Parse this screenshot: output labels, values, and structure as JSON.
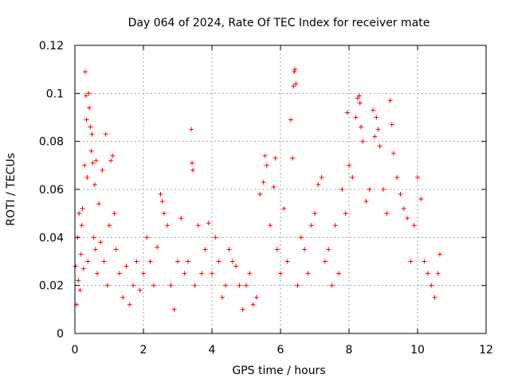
{
  "chart_data": {
    "type": "scatter",
    "title": "Day 064 of 2024, Rate Of TEC Index for receiver mate",
    "xlabel": "GPS time / hours",
    "ylabel": "ROTI / TECUs",
    "xlim": [
      0,
      12
    ],
    "ylim": [
      0,
      0.12
    ],
    "x_ticks": [
      0,
      2,
      4,
      6,
      8,
      10,
      12
    ],
    "x_tick_labels": [
      "0",
      "2",
      "4",
      "6",
      "8",
      "10",
      "12"
    ],
    "y_ticks": [
      0,
      0.02,
      0.04,
      0.06,
      0.08,
      0.1,
      0.12
    ],
    "y_tick_labels": [
      "0",
      "0.02",
      "0.04",
      "0.06",
      "0.08",
      "0.1",
      "0.12"
    ],
    "grid": true,
    "marker": "+",
    "marker_color": "#ff0000",
    "series": [
      {
        "name": "ROTI",
        "points": [
          [
            0.02,
            0.028
          ],
          [
            0.05,
            0.012
          ],
          [
            0.08,
            0.04
          ],
          [
            0.1,
            0.022
          ],
          [
            0.12,
            0.05
          ],
          [
            0.15,
            0.018
          ],
          [
            0.18,
            0.033
          ],
          [
            0.2,
            0.045
          ],
          [
            0.22,
            0.052
          ],
          [
            0.25,
            0.027
          ],
          [
            0.28,
            0.07
          ],
          [
            0.3,
            0.109
          ],
          [
            0.32,
            0.099
          ],
          [
            0.34,
            0.089
          ],
          [
            0.36,
            0.065
          ],
          [
            0.38,
            0.03
          ],
          [
            0.4,
            0.1
          ],
          [
            0.42,
            0.094
          ],
          [
            0.45,
            0.086
          ],
          [
            0.48,
            0.076
          ],
          [
            0.5,
            0.083
          ],
          [
            0.52,
            0.071
          ],
          [
            0.55,
            0.04
          ],
          [
            0.58,
            0.062
          ],
          [
            0.6,
            0.035
          ],
          [
            0.62,
            0.072
          ],
          [
            0.65,
            0.025
          ],
          [
            0.7,
            0.054
          ],
          [
            0.75,
            0.038
          ],
          [
            0.8,
            0.068
          ],
          [
            0.85,
            0.03
          ],
          [
            0.9,
            0.083
          ],
          [
            0.95,
            0.02
          ],
          [
            1.0,
            0.045
          ],
          [
            1.05,
            0.072
          ],
          [
            1.1,
            0.074
          ],
          [
            1.15,
            0.05
          ],
          [
            1.2,
            0.035
          ],
          [
            1.3,
            0.025
          ],
          [
            1.4,
            0.015
          ],
          [
            1.5,
            0.028
          ],
          [
            1.6,
            0.012
          ],
          [
            1.7,
            0.02
          ],
          [
            1.8,
            0.03
          ],
          [
            1.9,
            0.018
          ],
          [
            2.0,
            0.025
          ],
          [
            2.1,
            0.04
          ],
          [
            2.2,
            0.03
          ],
          [
            2.3,
            0.02
          ],
          [
            2.4,
            0.036
          ],
          [
            2.5,
            0.058
          ],
          [
            2.55,
            0.055
          ],
          [
            2.6,
            0.05
          ],
          [
            2.7,
            0.045
          ],
          [
            2.8,
            0.02
          ],
          [
            2.9,
            0.01
          ],
          [
            3.0,
            0.03
          ],
          [
            3.1,
            0.048
          ],
          [
            3.2,
            0.025
          ],
          [
            3.3,
            0.03
          ],
          [
            3.4,
            0.085
          ],
          [
            3.42,
            0.071
          ],
          [
            3.44,
            0.068
          ],
          [
            3.5,
            0.02
          ],
          [
            3.6,
            0.045
          ],
          [
            3.7,
            0.025
          ],
          [
            3.8,
            0.035
          ],
          [
            3.9,
            0.046
          ],
          [
            4.0,
            0.025
          ],
          [
            4.1,
            0.04
          ],
          [
            4.2,
            0.03
          ],
          [
            4.3,
            0.015
          ],
          [
            4.4,
            0.02
          ],
          [
            4.5,
            0.035
          ],
          [
            4.6,
            0.03
          ],
          [
            4.7,
            0.028
          ],
          [
            4.8,
            0.02
          ],
          [
            4.9,
            0.01
          ],
          [
            5.0,
            0.02
          ],
          [
            5.1,
            0.025
          ],
          [
            5.2,
            0.012
          ],
          [
            5.3,
            0.015
          ],
          [
            5.4,
            0.058
          ],
          [
            5.5,
            0.063
          ],
          [
            5.55,
            0.074
          ],
          [
            5.6,
            0.07
          ],
          [
            5.7,
            0.045
          ],
          [
            5.8,
            0.061
          ],
          [
            5.85,
            0.073
          ],
          [
            5.9,
            0.035
          ],
          [
            6.0,
            0.025
          ],
          [
            6.1,
            0.052
          ],
          [
            6.2,
            0.03
          ],
          [
            6.3,
            0.089
          ],
          [
            6.35,
            0.073
          ],
          [
            6.38,
            0.103
          ],
          [
            6.4,
            0.109
          ],
          [
            6.42,
            0.11
          ],
          [
            6.45,
            0.104
          ],
          [
            6.5,
            0.02
          ],
          [
            6.6,
            0.04
          ],
          [
            6.7,
            0.035
          ],
          [
            6.8,
            0.025
          ],
          [
            6.9,
            0.045
          ],
          [
            7.0,
            0.05
          ],
          [
            7.1,
            0.062
          ],
          [
            7.2,
            0.065
          ],
          [
            7.3,
            0.03
          ],
          [
            7.4,
            0.035
          ],
          [
            7.5,
            0.02
          ],
          [
            7.6,
            0.045
          ],
          [
            7.7,
            0.025
          ],
          [
            7.8,
            0.06
          ],
          [
            7.9,
            0.05
          ],
          [
            7.95,
            0.092
          ],
          [
            8.0,
            0.07
          ],
          [
            8.1,
            0.065
          ],
          [
            8.2,
            0.09
          ],
          [
            8.25,
            0.098
          ],
          [
            8.3,
            0.099
          ],
          [
            8.32,
            0.096
          ],
          [
            8.35,
            0.086
          ],
          [
            8.4,
            0.08
          ],
          [
            8.5,
            0.055
          ],
          [
            8.6,
            0.06
          ],
          [
            8.7,
            0.093
          ],
          [
            8.75,
            0.082
          ],
          [
            8.8,
            0.09
          ],
          [
            8.85,
            0.085
          ],
          [
            8.9,
            0.078
          ],
          [
            9.0,
            0.06
          ],
          [
            9.1,
            0.05
          ],
          [
            9.2,
            0.097
          ],
          [
            9.25,
            0.087
          ],
          [
            9.3,
            0.075
          ],
          [
            9.4,
            0.065
          ],
          [
            9.5,
            0.058
          ],
          [
            9.6,
            0.052
          ],
          [
            9.7,
            0.048
          ],
          [
            9.8,
            0.03
          ],
          [
            9.9,
            0.045
          ],
          [
            10.0,
            0.065
          ],
          [
            10.1,
            0.056
          ],
          [
            10.2,
            0.03
          ],
          [
            10.3,
            0.025
          ],
          [
            10.4,
            0.02
          ],
          [
            10.5,
            0.015
          ],
          [
            10.6,
            0.025
          ],
          [
            10.65,
            0.033
          ]
        ]
      }
    ]
  }
}
